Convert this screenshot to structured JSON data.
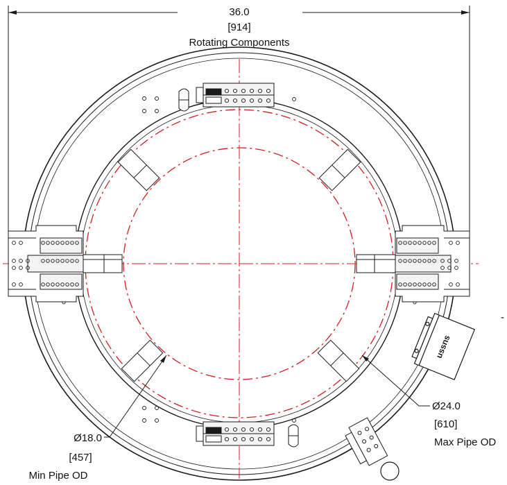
{
  "dimensions": {
    "overall": {
      "value": "36.0",
      "metric": "[914]",
      "label": "Rotating Components"
    },
    "min_pipe": {
      "value": "Ø18.0",
      "metric": "[457]",
      "label": "Min Pipe OD"
    },
    "max_pipe": {
      "value": "Ø24.0",
      "metric": "[610]",
      "label": "Max Pipe OD"
    }
  },
  "housing_label": "ussns",
  "colors": {
    "line": "#1a1a1a",
    "centerline": "#d21e1e",
    "fill": "#ffffff",
    "block": "#f4f4f4"
  },
  "side_mark": "-"
}
